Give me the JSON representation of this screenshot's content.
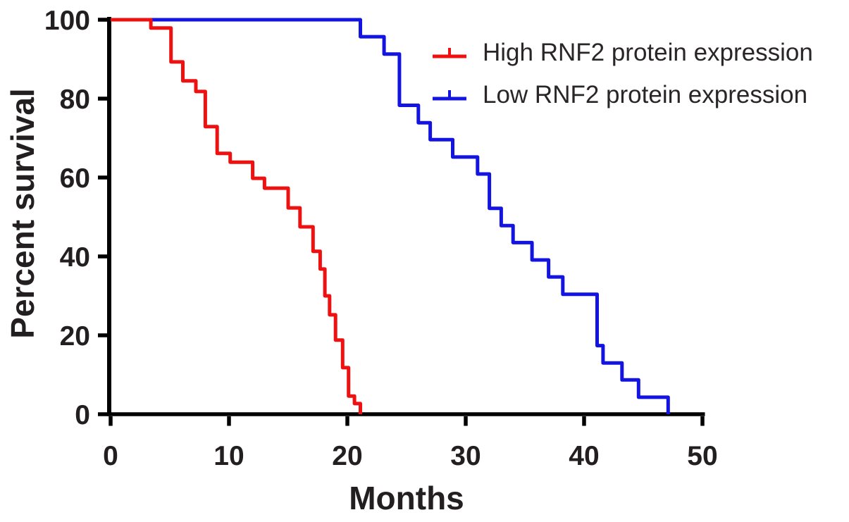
{
  "figure": {
    "title": "",
    "background": "#ffffff",
    "axis_color": "#000000",
    "tick_label_color": "#231f20",
    "legend": [
      {
        "label": "High RNF2 protein expression",
        "color": "#ee1111"
      },
      {
        "label": "Low RNF2 protein expression",
        "color": "#1414e0"
      }
    ]
  },
  "chart_data": {
    "type": "line",
    "subtype": "kaplan_meier_step_survival",
    "title": "",
    "xlabel": "Months",
    "ylabel": "Percent survival",
    "xlim": [
      0,
      50
    ],
    "ylim": [
      0,
      100
    ],
    "x_ticks": [
      0,
      10,
      20,
      30,
      40,
      50
    ],
    "y_ticks": [
      0,
      20,
      40,
      60,
      80,
      100
    ],
    "grid": false,
    "legend_position": "top-right",
    "series": [
      {
        "name": "High RNF2 protein expression",
        "color": "#ee1111",
        "start": [
          0,
          100
        ],
        "steps": [
          [
            3.4,
            97.9
          ],
          [
            5.1,
            89.3
          ],
          [
            6.1,
            84.5
          ],
          [
            7.2,
            81.8
          ],
          [
            8.0,
            72.9
          ],
          [
            9.0,
            66.1
          ],
          [
            10.1,
            63.9
          ],
          [
            12.0,
            59.8
          ],
          [
            13.0,
            57.3
          ],
          [
            15.0,
            52.3
          ],
          [
            16.0,
            47.5
          ],
          [
            17.1,
            41.3
          ],
          [
            17.7,
            36.8
          ],
          [
            18.1,
            30.0
          ],
          [
            18.5,
            25.2
          ],
          [
            19.0,
            18.8
          ],
          [
            19.6,
            11.8
          ],
          [
            20.1,
            4.6
          ],
          [
            20.6,
            2.7
          ],
          [
            21.1,
            0
          ]
        ]
      },
      {
        "name": "Low RNF2 protein expression",
        "color": "#1414e0",
        "start": [
          0,
          100
        ],
        "steps": [
          [
            21.1,
            95.7
          ],
          [
            23.1,
            91.3
          ],
          [
            24.4,
            78.3
          ],
          [
            26.0,
            73.9
          ],
          [
            27.0,
            69.6
          ],
          [
            28.9,
            65.2
          ],
          [
            31.0,
            60.9
          ],
          [
            32.0,
            52.2
          ],
          [
            33.0,
            47.8
          ],
          [
            34.0,
            43.5
          ],
          [
            35.6,
            39.1
          ],
          [
            37.0,
            34.8
          ],
          [
            38.2,
            30.4
          ],
          [
            41.1,
            17.4
          ],
          [
            41.6,
            13.0
          ],
          [
            43.2,
            8.7
          ],
          [
            44.6,
            4.3
          ],
          [
            47.1,
            0
          ]
        ]
      }
    ]
  }
}
